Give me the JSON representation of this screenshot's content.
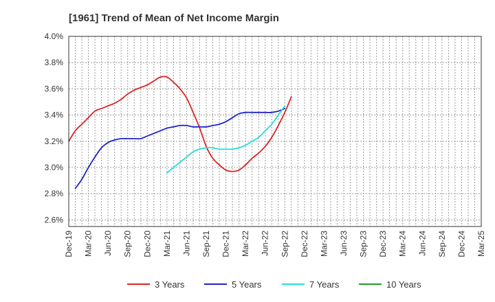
{
  "chart_data": {
    "type": "line",
    "title": "[1961]  Trend of Mean of Net Income Margin",
    "xlabel": "",
    "ylabel": "",
    "x_tick_labels": [
      "Dec-19",
      "Mar-20",
      "Jun-20",
      "Sep-20",
      "Dec-20",
      "Mar-21",
      "Jun-21",
      "Sep-21",
      "Dec-21",
      "Mar-22",
      "Jun-22",
      "Sep-22",
      "Dec-22",
      "Mar-23",
      "Jun-23",
      "Sep-23",
      "Dec-23",
      "Mar-24",
      "Jun-24",
      "Sep-24",
      "Dec-24",
      "Mar-25"
    ],
    "y_tick_labels": [
      "2.6%",
      "2.8%",
      "3.0%",
      "3.2%",
      "3.4%",
      "3.6%",
      "3.8%",
      "4.0%"
    ],
    "ylim": [
      2.55,
      4.0
    ],
    "grid": true,
    "legend_position": "bottom",
    "series": [
      {
        "name": "3 Years",
        "color": "#dd2222",
        "points": [
          [
            0,
            3.2
          ],
          [
            1,
            3.28
          ],
          [
            2,
            3.33
          ],
          [
            3,
            3.38
          ],
          [
            4,
            3.43
          ],
          [
            5,
            3.45
          ],
          [
            6,
            3.47
          ],
          [
            7,
            3.49
          ],
          [
            8,
            3.52
          ],
          [
            9,
            3.56
          ],
          [
            10,
            3.59
          ],
          [
            11,
            3.61
          ],
          [
            12,
            3.63
          ],
          [
            13,
            3.66
          ],
          [
            14,
            3.69
          ],
          [
            15,
            3.69
          ],
          [
            16,
            3.65
          ],
          [
            17,
            3.6
          ],
          [
            18,
            3.53
          ],
          [
            19,
            3.42
          ],
          [
            20,
            3.3
          ],
          [
            21,
            3.16
          ],
          [
            22,
            3.07
          ],
          [
            23,
            3.02
          ],
          [
            24,
            2.98
          ],
          [
            25,
            2.97
          ],
          [
            26,
            2.98
          ],
          [
            27,
            3.02
          ],
          [
            28,
            3.07
          ],
          [
            29,
            3.11
          ],
          [
            30,
            3.16
          ],
          [
            31,
            3.23
          ],
          [
            32,
            3.32
          ],
          [
            33,
            3.42
          ],
          [
            34,
            3.54
          ]
        ]
      },
      {
        "name": "5 Years",
        "color": "#1f22c8",
        "points": [
          [
            1,
            2.84
          ],
          [
            2,
            2.91
          ],
          [
            3,
            3.0
          ],
          [
            4,
            3.08
          ],
          [
            5,
            3.15
          ],
          [
            6,
            3.19
          ],
          [
            7,
            3.21
          ],
          [
            8,
            3.22
          ],
          [
            9,
            3.22
          ],
          [
            10,
            3.22
          ],
          [
            11,
            3.22
          ],
          [
            12,
            3.24
          ],
          [
            13,
            3.26
          ],
          [
            14,
            3.28
          ],
          [
            15,
            3.3
          ],
          [
            16,
            3.31
          ],
          [
            17,
            3.32
          ],
          [
            18,
            3.32
          ],
          [
            19,
            3.31
          ],
          [
            20,
            3.31
          ],
          [
            21,
            3.31
          ],
          [
            22,
            3.32
          ],
          [
            23,
            3.33
          ],
          [
            24,
            3.35
          ],
          [
            25,
            3.38
          ],
          [
            26,
            3.41
          ],
          [
            27,
            3.42
          ],
          [
            28,
            3.42
          ],
          [
            29,
            3.42
          ],
          [
            30,
            3.42
          ],
          [
            31,
            3.42
          ],
          [
            32,
            3.43
          ],
          [
            33,
            3.45
          ]
        ]
      },
      {
        "name": "7 Years",
        "color": "#22dddd",
        "points": [
          [
            15,
            2.96
          ],
          [
            16,
            3.0
          ],
          [
            17,
            3.04
          ],
          [
            18,
            3.08
          ],
          [
            19,
            3.12
          ],
          [
            20,
            3.14
          ],
          [
            21,
            3.15
          ],
          [
            22,
            3.15
          ],
          [
            23,
            3.14
          ],
          [
            24,
            3.14
          ],
          [
            25,
            3.14
          ],
          [
            26,
            3.15
          ],
          [
            27,
            3.17
          ],
          [
            28,
            3.2
          ],
          [
            29,
            3.23
          ],
          [
            30,
            3.28
          ],
          [
            31,
            3.33
          ],
          [
            32,
            3.4
          ],
          [
            33,
            3.47
          ]
        ]
      },
      {
        "name": "10 Years",
        "color": "#229922",
        "points": []
      }
    ]
  }
}
